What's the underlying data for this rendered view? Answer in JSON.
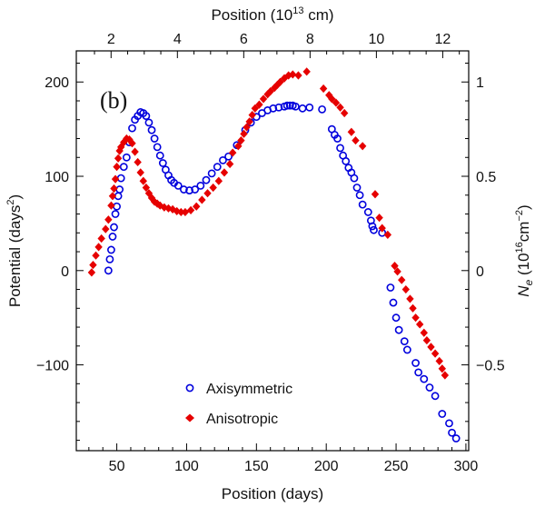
{
  "chart_data": {
    "type": "scatter",
    "panel_label": "(b)",
    "xlabel": "Position (days)",
    "ylabel_left_text": "Potential (days",
    "ylabel_left_sup": "2",
    "ylabel_left_close": ")",
    "xlabel_top_text": "Position (10",
    "xlabel_top_sup": "13",
    "xlabel_top_unit": " cm)",
    "ylabel_right_symbol": "N",
    "ylabel_right_sub": "e",
    "ylabel_right_open": " (10",
    "ylabel_right_sup": "16",
    "ylabel_right_unit": "cm",
    "ylabel_right_unit_sup": "−2",
    "ylabel_right_close": ")",
    "xlim": [
      21,
      302
    ],
    "ylim": [
      -191,
      233
    ],
    "x_ticks": [
      50,
      100,
      150,
      200,
      250,
      300
    ],
    "y_ticks": [
      200,
      100,
      0,
      -100
    ],
    "y_tick_labels": [
      "200",
      "100",
      "0",
      "−100"
    ],
    "top_axis": {
      "ticks": [
        2,
        4,
        6,
        8,
        10,
        12
      ],
      "slope_days_per_unit": 23.75,
      "offset_days": -1.6
    },
    "right_axis": {
      "ticks": [
        1,
        0.5,
        0,
        -0.5
      ],
      "tick_labels": [
        "1",
        "0.5",
        "0",
        "−0.5"
      ],
      "potential_per_unit": 200
    },
    "legend_position": "bottom-center",
    "series": [
      {
        "name": "Axisymmetric",
        "marker": "circle",
        "color": "#0000dd",
        "points": [
          [
            44,
            0
          ],
          [
            45,
            12
          ],
          [
            46,
            22
          ],
          [
            47,
            36
          ],
          [
            48,
            46
          ],
          [
            49,
            60
          ],
          [
            50,
            68
          ],
          [
            51,
            79
          ],
          [
            52,
            86
          ],
          [
            53,
            98
          ],
          [
            55,
            110
          ],
          [
            57,
            120
          ],
          [
            59,
            136
          ],
          [
            61,
            151
          ],
          [
            63,
            160
          ],
          [
            65,
            164
          ],
          [
            67,
            168
          ],
          [
            69,
            167
          ],
          [
            71,
            164
          ],
          [
            73,
            157
          ],
          [
            75,
            149
          ],
          [
            77,
            140
          ],
          [
            79,
            131
          ],
          [
            81,
            122
          ],
          [
            83,
            114
          ],
          [
            85,
            107
          ],
          [
            87,
            101
          ],
          [
            89,
            96
          ],
          [
            91,
            93
          ],
          [
            94,
            90
          ],
          [
            98,
            86
          ],
          [
            102,
            85
          ],
          [
            106,
            86
          ],
          [
            110,
            90
          ],
          [
            114,
            96
          ],
          [
            118,
            103
          ],
          [
            122,
            110
          ],
          [
            126,
            117
          ],
          [
            130,
            121
          ],
          [
            136,
            133
          ],
          [
            142,
            149
          ],
          [
            146,
            157
          ],
          [
            150,
            163
          ],
          [
            154,
            167
          ],
          [
            158,
            170
          ],
          [
            162,
            172
          ],
          [
            166,
            173
          ],
          [
            170,
            174
          ],
          [
            172,
            175
          ],
          [
            174,
            175
          ],
          [
            176,
            175
          ],
          [
            178,
            174
          ],
          [
            183,
            172
          ],
          [
            188,
            173
          ],
          [
            197,
            171
          ],
          [
            204,
            150
          ],
          [
            206,
            144
          ],
          [
            208,
            140
          ],
          [
            210,
            130
          ],
          [
            212,
            122
          ],
          [
            214,
            116
          ],
          [
            216,
            109
          ],
          [
            218,
            104
          ],
          [
            220,
            98
          ],
          [
            222,
            88
          ],
          [
            224,
            80
          ],
          [
            226,
            70
          ],
          [
            230,
            62
          ],
          [
            232,
            53
          ],
          [
            233,
            47
          ],
          [
            234,
            43
          ],
          [
            240,
            40
          ],
          [
            246,
            -18
          ],
          [
            248,
            -34
          ],
          [
            250,
            -50
          ],
          [
            252,
            -63
          ],
          [
            256,
            -75
          ],
          [
            258,
            -84
          ],
          [
            264,
            -98
          ],
          [
            266,
            -108
          ],
          [
            270,
            -115
          ],
          [
            274,
            -124
          ],
          [
            278,
            -133
          ],
          [
            283,
            -152
          ],
          [
            288,
            -162
          ],
          [
            290,
            -172
          ],
          [
            293,
            -178
          ]
        ]
      },
      {
        "name": "Anisotropic",
        "marker": "diamond",
        "color": "#e60000",
        "points": [
          [
            32,
            -2
          ],
          [
            33,
            6
          ],
          [
            35,
            16
          ],
          [
            37,
            25
          ],
          [
            39,
            34
          ],
          [
            42,
            44
          ],
          [
            44,
            54
          ],
          [
            46,
            69
          ],
          [
            47,
            79
          ],
          [
            48,
            87
          ],
          [
            49,
            97
          ],
          [
            50,
            110
          ],
          [
            51,
            119
          ],
          [
            52,
            127
          ],
          [
            53,
            131
          ],
          [
            55,
            136
          ],
          [
            57,
            140
          ],
          [
            59,
            139
          ],
          [
            61,
            135
          ],
          [
            63,
            126
          ],
          [
            65,
            115
          ],
          [
            67,
            104
          ],
          [
            69,
            95
          ],
          [
            71,
            88
          ],
          [
            73,
            82
          ],
          [
            75,
            77
          ],
          [
            77,
            73
          ],
          [
            79,
            71
          ],
          [
            81,
            69
          ],
          [
            84,
            67
          ],
          [
            87,
            66
          ],
          [
            90,
            65
          ],
          [
            93,
            63
          ],
          [
            96,
            62
          ],
          [
            99,
            62
          ],
          [
            103,
            64
          ],
          [
            107,
            68
          ],
          [
            111,
            75
          ],
          [
            115,
            82
          ],
          [
            119,
            88
          ],
          [
            123,
            95
          ],
          [
            127,
            104
          ],
          [
            131,
            113
          ],
          [
            133,
            125
          ],
          [
            137,
            132
          ],
          [
            139,
            138
          ],
          [
            141,
            145
          ],
          [
            143,
            152
          ],
          [
            145,
            158
          ],
          [
            147,
            165
          ],
          [
            149,
            172
          ],
          [
            152,
            176
          ],
          [
            155,
            182
          ],
          [
            158,
            187
          ],
          [
            160,
            190
          ],
          [
            163,
            194
          ],
          [
            165,
            197
          ],
          [
            167,
            200
          ],
          [
            170,
            204
          ],
          [
            173,
            207
          ],
          [
            176,
            208
          ],
          [
            180,
            207
          ],
          [
            186,
            211
          ],
          [
            198,
            193
          ],
          [
            202,
            186
          ],
          [
            204,
            182
          ],
          [
            207,
            178
          ],
          [
            210,
            173
          ],
          [
            213,
            167
          ],
          [
            218,
            147
          ],
          [
            221,
            138
          ],
          [
            226,
            132
          ],
          [
            235,
            81
          ],
          [
            238,
            56
          ],
          [
            240,
            45
          ],
          [
            244,
            38
          ],
          [
            249,
            5
          ],
          [
            251,
            -1
          ],
          [
            254,
            -10
          ],
          [
            257,
            -20
          ],
          [
            260,
            -30
          ],
          [
            262,
            -40
          ],
          [
            264,
            -50
          ],
          [
            267,
            -57
          ],
          [
            270,
            -66
          ],
          [
            272,
            -74
          ],
          [
            275,
            -81
          ],
          [
            278,
            -88
          ],
          [
            281,
            -96
          ],
          [
            283,
            -104
          ],
          [
            285,
            -111
          ]
        ]
      }
    ]
  }
}
